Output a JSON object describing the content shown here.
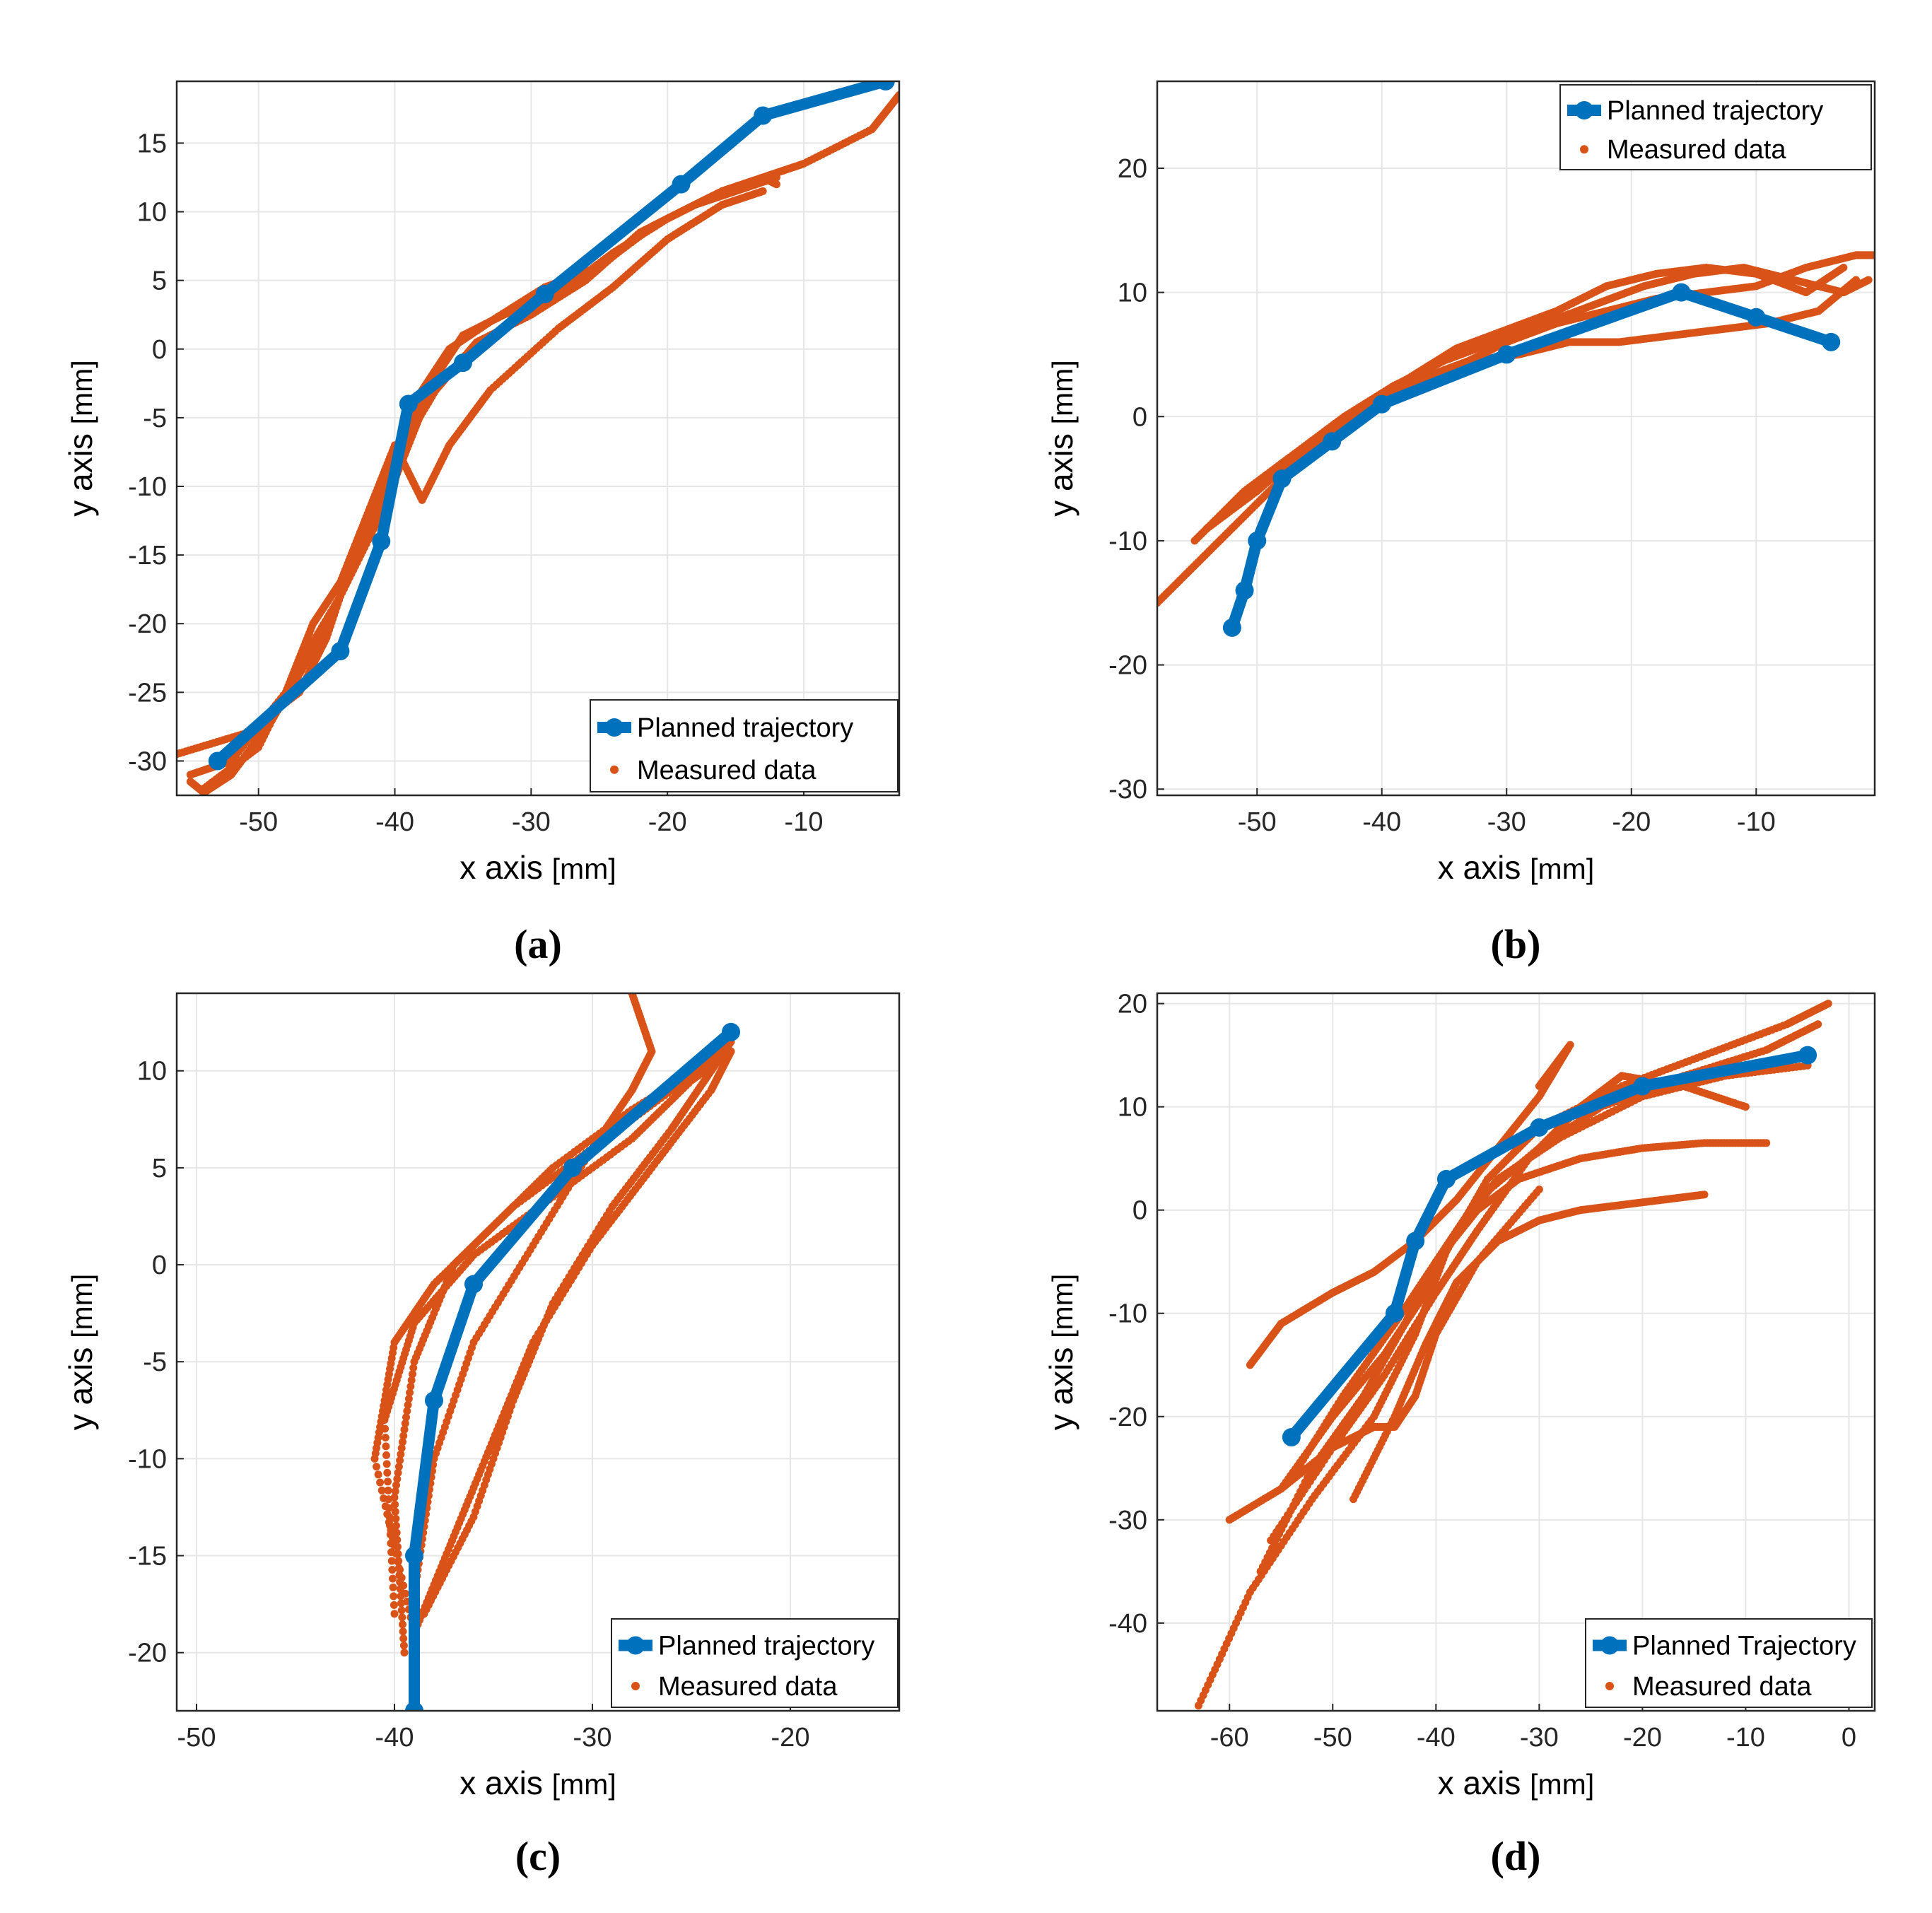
{
  "colors": {
    "planned": "#0072BD",
    "measured": "#D95319",
    "grid": "#e6e6e6",
    "axis": "#262626"
  },
  "chart_data": [
    {
      "id": "a",
      "panel_label": "(a)",
      "type": "line",
      "xlabel": "x axis",
      "xunit": "[mm]",
      "ylabel": "y axis",
      "yunit": "[mm]",
      "xlim": [
        -56,
        -3
      ],
      "ylim": [
        -32.5,
        19.5
      ],
      "xticks": [
        -50,
        -40,
        -30,
        -20,
        -10
      ],
      "yticks": [
        -30,
        -25,
        -20,
        -15,
        -10,
        -5,
        0,
        5,
        10,
        15
      ],
      "grid": true,
      "legend_position": "bottom-right",
      "series": [
        {
          "name": "Planned trajectory",
          "kind": "planned",
          "x": [
            -53,
            -44,
            -41,
            -39,
            -35,
            -29,
            -19,
            -13,
            -4
          ],
          "y": [
            -30,
            -22,
            -14,
            -4,
            -1,
            4,
            12,
            17,
            19.5
          ]
        },
        {
          "name": "Measured data",
          "kind": "measured",
          "passes": [
            {
              "x": [
                -56,
                -51,
                -47,
                -45,
                -43,
                -40,
                -38,
                -36,
                -33,
                -29,
                -25,
                -21,
                -17,
                -13,
                -10,
                -5,
                -3
              ],
              "y": [
                -29.5,
                -28,
                -25,
                -21,
                -15,
                -9,
                -3,
                0,
                2,
                4.5,
                6,
                9,
                11,
                12.5,
                13.5,
                16,
                18.5
              ]
            },
            {
              "x": [
                -55,
                -54,
                -52,
                -49,
                -46,
                -44,
                -42,
                -40,
                -37,
                -34,
                -30,
                -26,
                -22,
                -18,
                -15,
                -12
              ],
              "y": [
                -31.5,
                -32.3,
                -31,
                -27,
                -22,
                -18,
                -13,
                -8,
                -3,
                0.5,
                2.5,
                5,
                8.5,
                10.5,
                11.5,
                12.5
              ]
            },
            {
              "x": [
                -55,
                -52,
                -48,
                -46,
                -44,
                -42,
                -40,
                -38,
                -36,
                -33,
                -28,
                -24,
                -20,
                -16,
                -13
              ],
              "y": [
                -31,
                -30,
                -25,
                -20,
                -17,
                -12,
                -7,
                -11,
                -7,
                -3,
                1.5,
                4.5,
                8,
                10.5,
                11.5
              ]
            },
            {
              "x": [
                -54,
                -50,
                -47,
                -44,
                -41,
                -39,
                -37,
                -35,
                -32,
                -28,
                -24,
                -20,
                -16,
                -13,
                -12
              ],
              "y": [
                -32,
                -29,
                -23,
                -18,
                -12,
                -7,
                -2,
                1,
                2.5,
                4,
                7,
                9.5,
                11.5,
                12.5,
                12
              ]
            }
          ]
        }
      ]
    },
    {
      "id": "b",
      "panel_label": "(b)",
      "type": "line",
      "xlabel": "x axis",
      "xunit": "[mm]",
      "ylabel": "y axis",
      "yunit": "[mm]",
      "xlim": [
        -58,
        -0.5
      ],
      "ylim": [
        -30.5,
        27
      ],
      "xticks": [
        -50,
        -40,
        -30,
        -20,
        -10
      ],
      "yticks": [
        -30,
        -20,
        -10,
        0,
        10,
        20
      ],
      "grid": true,
      "legend_position": "top-right",
      "series": [
        {
          "name": "Planned trajectory",
          "kind": "planned",
          "x": [
            -52,
            -51,
            -50,
            -48,
            -44,
            -40,
            -30,
            -16,
            -10,
            -4
          ],
          "y": [
            -17,
            -14,
            -10,
            -5,
            -2,
            1,
            5,
            10,
            8,
            6
          ]
        },
        {
          "name": "Measured data",
          "kind": "measured",
          "passes": [
            {
              "x": [
                -58,
                -54,
                -50,
                -46,
                -42,
                -38,
                -34,
                -30,
                -26,
                -22,
                -18,
                -14,
                -10,
                -6,
                -2,
                -0.5
              ],
              "y": [
                -15,
                -11,
                -7,
                -3,
                0,
                2,
                4,
                6,
                7.5,
                8.5,
                9.5,
                10,
                10.5,
                12,
                13,
                13
              ]
            },
            {
              "x": [
                -55,
                -51,
                -47,
                -43,
                -39,
                -35,
                -31,
                -27,
                -23,
                -19,
                -15,
                -11,
                -7,
                -3,
                -1
              ],
              "y": [
                -10,
                -6,
                -3,
                0,
                2.5,
                4.5,
                6,
                7.5,
                9,
                10.5,
                11.5,
                12,
                11,
                10,
                11
              ]
            },
            {
              "x": [
                -53,
                -49,
                -45,
                -41,
                -37,
                -33,
                -29,
                -25,
                -21,
                -17,
                -13,
                -9,
                -5,
                -2
              ],
              "y": [
                -8,
                -5,
                -2,
                1,
                3,
                4.5,
                5,
                6,
                6,
                6.5,
                7,
                7.5,
                8.5,
                11
              ]
            },
            {
              "x": [
                -54,
                -50,
                -46,
                -42,
                -38,
                -34,
                -30,
                -26,
                -22,
                -18,
                -14,
                -10,
                -6,
                -3
              ],
              "y": [
                -9,
                -6,
                -2.5,
                0.5,
                3,
                5.5,
                7,
                8.5,
                10.5,
                11.5,
                12,
                11.5,
                10,
                12
              ]
            }
          ]
        }
      ]
    },
    {
      "id": "c",
      "panel_label": "(c)",
      "type": "line",
      "xlabel": "x axis",
      "xunit": "[mm]",
      "ylabel": "y axis",
      "yunit": "[mm]",
      "xlim": [
        -51,
        -14.5
      ],
      "ylim": [
        -23,
        14
      ],
      "xticks": [
        -50,
        -40,
        -30,
        -20
      ],
      "yticks": [
        -20,
        -15,
        -10,
        -5,
        0,
        5,
        10
      ],
      "grid": true,
      "legend_position": "bottom-right",
      "series": [
        {
          "name": "Planned trajectory",
          "kind": "planned",
          "x": [
            -39,
            -39,
            -38,
            -36,
            -31,
            -23
          ],
          "y": [
            -23,
            -15,
            -7,
            -1,
            5,
            12
          ]
        },
        {
          "name": "Measured data",
          "kind": "measured",
          "passes": [
            {
              "x": [
                -39.5,
                -40,
                -39,
                -37,
                -34,
                -30,
                -26,
                -23
              ],
              "y": [
                -20,
                -12,
                -5,
                0,
                3,
                6,
                9,
                11.5
              ]
            },
            {
              "x": [
                -39,
                -41,
                -40,
                -38,
                -35,
                -32,
                -28,
                -24
              ],
              "y": [
                -19,
                -10,
                -4,
                -1,
                2,
                5,
                8,
                10.5
              ]
            },
            {
              "x": [
                -39,
                -37,
                -35,
                -33,
                -30,
                -27,
                -24,
                -23
              ],
              "y": [
                -19,
                -14,
                -9,
                -4,
                1,
                5,
                9,
                11
              ]
            },
            {
              "x": [
                -38.5,
                -36,
                -34,
                -32,
                -29,
                -26,
                -24,
                -23
              ],
              "y": [
                -18,
                -13,
                -7,
                -2,
                3,
                7,
                10,
                11.5
              ]
            },
            {
              "x": [
                -39,
                -38,
                -36,
                -33,
                -30,
                -28,
                -27,
                -28
              ],
              "y": [
                -17,
                -10,
                -4,
                1,
                6,
                9,
                11,
                14
              ]
            },
            {
              "x": [
                -40,
                -40.5,
                -39,
                -36,
                -32,
                -28,
                -25,
                -23
              ],
              "y": [
                -18,
                -8,
                -3,
                0.5,
                3.5,
                6.5,
                9.5,
                11
              ]
            }
          ]
        }
      ]
    },
    {
      "id": "d",
      "panel_label": "(d)",
      "type": "line",
      "xlabel": "x axis",
      "xunit": "[mm]",
      "ylabel": "y axis",
      "yunit": "[mm]",
      "xlim": [
        -67,
        2.5
      ],
      "ylim": [
        -48.5,
        21
      ],
      "xticks": [
        -60,
        -50,
        -40,
        -30,
        -20,
        -10,
        0
      ],
      "yticks": [
        -40,
        -30,
        -20,
        -10,
        0,
        10,
        20
      ],
      "grid": true,
      "legend_position": "bottom-right",
      "series": [
        {
          "name": "Planned Trajectory",
          "kind": "planned",
          "x": [
            -54,
            -44,
            -42,
            -39,
            -30,
            -20,
            -4
          ],
          "y": [
            -22,
            -10,
            -3,
            3,
            8,
            12,
            15
          ]
        },
        {
          "name": "Measured data",
          "kind": "measured",
          "passes": [
            {
              "x": [
                -63,
                -58,
                -52,
                -46,
                -42,
                -39,
                -35,
                -30,
                -22,
                -14,
                -6,
                -2
              ],
              "y": [
                -48,
                -37,
                -28,
                -20,
                -12,
                -4,
                3,
                8,
                12,
                15,
                18,
                20
              ]
            },
            {
              "x": [
                -57,
                -52,
                -47,
                -43,
                -40,
                -36,
                -30,
                -24,
                -16,
                -8,
                -3
              ],
              "y": [
                -35,
                -25,
                -18,
                -11,
                -5,
                1,
                6,
                10,
                13,
                15.5,
                18
              ]
            },
            {
              "x": [
                -55,
                -50,
                -45,
                -41,
                -38,
                -34,
                -28,
                -20,
                -12,
                -4
              ],
              "y": [
                -27,
                -20,
                -14,
                -8,
                -2,
                3,
                7,
                11,
                13,
                14
              ]
            },
            {
              "x": [
                -56,
                -50,
                -45,
                -40,
                -36,
                -31,
                -26,
                -22,
                -16,
                -10
              ],
              "y": [
                -32,
                -23,
                -16,
                -8,
                -2,
                5,
                10,
                13,
                12,
                10
              ]
            },
            {
              "x": [
                -54,
                -49,
                -44,
                -40,
                -36,
                -32,
                -26,
                -20,
                -14,
                -8
              ],
              "y": [
                -26,
                -18,
                -11,
                -5,
                0,
                3,
                5,
                6,
                6.5,
                6.5
              ]
            },
            {
              "x": [
                -48,
                -44,
                -41,
                -38,
                -34,
                -30,
                -26,
                -22,
                -18,
                -14
              ],
              "y": [
                -28,
                -20,
                -13,
                -7,
                -3,
                -1,
                0,
                0.5,
                1,
                1.5
              ]
            },
            {
              "x": [
                -58,
                -55,
                -50,
                -46,
                -42,
                -38,
                -34,
                -30,
                -27,
                -30
              ],
              "y": [
                -15,
                -11,
                -8,
                -6,
                -3,
                1,
                6,
                11,
                16,
                12
              ]
            },
            {
              "x": [
                -60,
                -55,
                -50,
                -46,
                -44,
                -42,
                -40,
                -36,
                -30
              ],
              "y": [
                -30,
                -27,
                -23,
                -21,
                -21,
                -18,
                -12,
                -5,
                2
              ]
            }
          ]
        }
      ]
    }
  ]
}
